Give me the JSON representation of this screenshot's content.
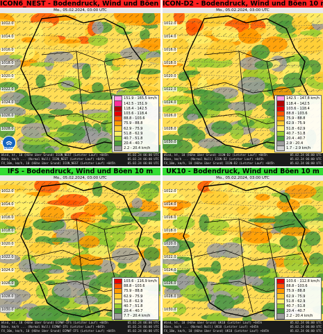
{
  "panels": [
    {
      "title": "ICON6_NEST - Bodendruck, Wind und Böen 10 m",
      "title_bg": "#ff2020",
      "run": "Mo., 05.02.2024, 03:00 UTC",
      "isobars": [
        "1012.0",
        "1014.0",
        "1016.0",
        "1018.0",
        "1020.0",
        "1022.0",
        "1024.0",
        "1026.0",
        "1028.0",
        "1030.0"
      ],
      "legend": [
        {
          "label": "151.9 - 165.5 km/h",
          "color": "#ff99e6"
        },
        {
          "label": "142.5 - 151.9",
          "color": "#ff2e9a"
        },
        {
          "label": "118.4 - 142.5",
          "color": "#b30000"
        },
        {
          "label": "103.6 - 118.4",
          "color": "#e60000"
        },
        {
          "label": "88.8 - 103.6",
          "color": "#ff5500"
        },
        {
          "label": "75.9 - 88.8",
          "color": "#ff9900"
        },
        {
          "label": "62.9 - 75.9",
          "color": "#ffcc33"
        },
        {
          "label": "51.8 - 62.9",
          "color": "#ffee66"
        },
        {
          "label": "40.7 - 51.8",
          "color": "#9acd32"
        },
        {
          "label": "20.4 - 40.7",
          "color": "#4c9a3c"
        },
        {
          "label": "2.2 - 20.4 km/h",
          "color": "#9e9e9e"
        }
      ],
      "footer": [
        [
          "Wind, kt, 10 (Höhe über Grund) ICON_NEST (Letzter Lauf) +045h",
          "05.02.24 06:00 UTC"
        ],
        [
          "Böen, km/h ... (Normal Null) ICON_NEST (Letzter Lauf) +045h",
          "05.02.24 06:00 UTC"
        ],
        [
          "FX_10m, km/h, 10 (Höhe über Grund) ICON_NEST (Letzter Lauf) +045h",
          "05.02.24 06:00 UTC"
        ]
      ],
      "logo_text": "DWD"
    },
    {
      "title": "ICON-D2 - Bodendruck, Wind und Böen 10 m",
      "title_bg": "#ff2020",
      "run": "Mo., 05.02.2024, 03:00 UTC",
      "isobars": [
        "1012.0",
        "1014.0",
        "1016.0",
        "1018.0",
        "1020.0",
        "1022.0",
        "1024.0",
        "1026.0",
        "1028.0",
        "1030.0"
      ],
      "legend": [
        {
          "label": "142.5 - 147.8 km/h",
          "color": "#ff99e6"
        },
        {
          "label": "118.4 - 142.5",
          "color": "#b30000"
        },
        {
          "label": "103.6 - 118.4",
          "color": "#e60000"
        },
        {
          "label": "88.8 - 103.6",
          "color": "#ff5500"
        },
        {
          "label": "75.9 - 88.8",
          "color": "#ff9900"
        },
        {
          "label": "62.9 - 75.9",
          "color": "#ffcc33"
        },
        {
          "label": "51.8 - 62.9",
          "color": "#ffee66"
        },
        {
          "label": "40.7 - 51.8",
          "color": "#9acd32"
        },
        {
          "label": "20.4 - 40.7",
          "color": "#4c9a3c"
        },
        {
          "label": "2.9 - 20.4",
          "color": "#9e9e9e"
        },
        {
          "label": "1.7 - 2.9 km/h",
          "color": "#cfcfcf"
        }
      ],
      "footer": [
        [
          "Wind, kt, 10 (Höhe über Grund) ICON-D2 (Letzter Lauf) +045h",
          "05.02.24 06:00 UTC"
        ],
        [
          "Böen, km/h ... (Normal Null) ICON-D2 (Letzter Lauf) +045h",
          "05.02.24 06:00 UTC"
        ],
        [
          "FX_10m, km/h, 10 (Höhe über Grund) ICON-D2 (Letzter Lauf) +045h",
          "05.02.24 06:00 UTC"
        ]
      ],
      "logo_text": ""
    },
    {
      "title": "IFS - Bodendruck, Wind und Böen 10 m",
      "title_bg": "#33dd33",
      "run": "Mo., 05.02.2024, 03:00 UTC",
      "isobars": [
        "1012.0",
        "1014.0",
        "1016.0",
        "1018.0",
        "1020.0",
        "1022.0",
        "1024.0",
        "1026.0",
        "1028.0",
        "1030.0"
      ],
      "legend": [
        {
          "label": "103.6 - 116.9 km/h",
          "color": "#e60000"
        },
        {
          "label": "88.8 - 103.6",
          "color": "#ff5500"
        },
        {
          "label": "75.9 - 88.8",
          "color": "#ff9900"
        },
        {
          "label": "62.9 - 75.9",
          "color": "#ffcc33"
        },
        {
          "label": "51.8 - 62.9",
          "color": "#ffee66"
        },
        {
          "label": "40.7 - 51.8",
          "color": "#9acd32"
        },
        {
          "label": "20.4 - 40.7",
          "color": "#4c9a3c"
        },
        {
          "label": "7.7 - 20.4 km/h",
          "color": "#9e9e9e"
        }
      ],
      "footer": [
        [
          "Wind, kt, 10 (Höhe über Grund) ECMWF-IFS (Letzter Lauf) +045h",
          "05.02.24 06:00 UTC"
        ],
        [
          "Böen, km/h ... (Normal Null) ECMWF-IFS (Letzter Lauf) +045h",
          "05.02.24 06:00 UTC"
        ],
        [
          "FX_10m, km/h, 10 (Höhe über Grund) ECMWF-IFS (Letzter Lauf) +045h",
          "05.02.24 06:00 UTC"
        ]
      ],
      "logo_text": ""
    },
    {
      "title": "UK10 - Bodendruck, Wind und Böen 10 m",
      "title_bg": "#33dd33",
      "run": "Mo., 05.02.2024, 03:00 UTC",
      "isobars": [
        "1012.0",
        "1014.0",
        "1016.0",
        "1018.0",
        "1020.0",
        "1022.0",
        "1024.0",
        "1026.0",
        "1028.0",
        "1030.0"
      ],
      "legend": [
        {
          "label": "103.6 - 112.8 km/h",
          "color": "#e60000"
        },
        {
          "label": "88.8 - 103.6",
          "color": "#ff5500"
        },
        {
          "label": "75.9 - 88.8",
          "color": "#ff9900"
        },
        {
          "label": "62.9 - 75.9",
          "color": "#ffcc33"
        },
        {
          "label": "51.8 - 62.9",
          "color": "#ffee66"
        },
        {
          "label": "40.7 - 51.8",
          "color": "#9acd32"
        },
        {
          "label": "20.4 - 40.7",
          "color": "#4c9a3c"
        },
        {
          "label": "2.2 - 20.4 km/h",
          "color": "#9e9e9e"
        }
      ],
      "footer": [
        [
          "Wind, kt, 10 (Höhe über Grund) UK10 (Letzter Lauf) +045h",
          "05.02.24 06:00 UTC"
        ],
        [
          "Böen, km/h ... (Normal Null) UK10 (Letzter Lauf) +045h",
          "05.02.24 06:00 UTC"
        ],
        [
          "FX_10m, km/h, 10 (Höhe über Grund) UK10 (Letzter Lauf) +045h",
          "05.02.24 06:00 UTC"
        ]
      ],
      "logo_text": ""
    }
  ]
}
